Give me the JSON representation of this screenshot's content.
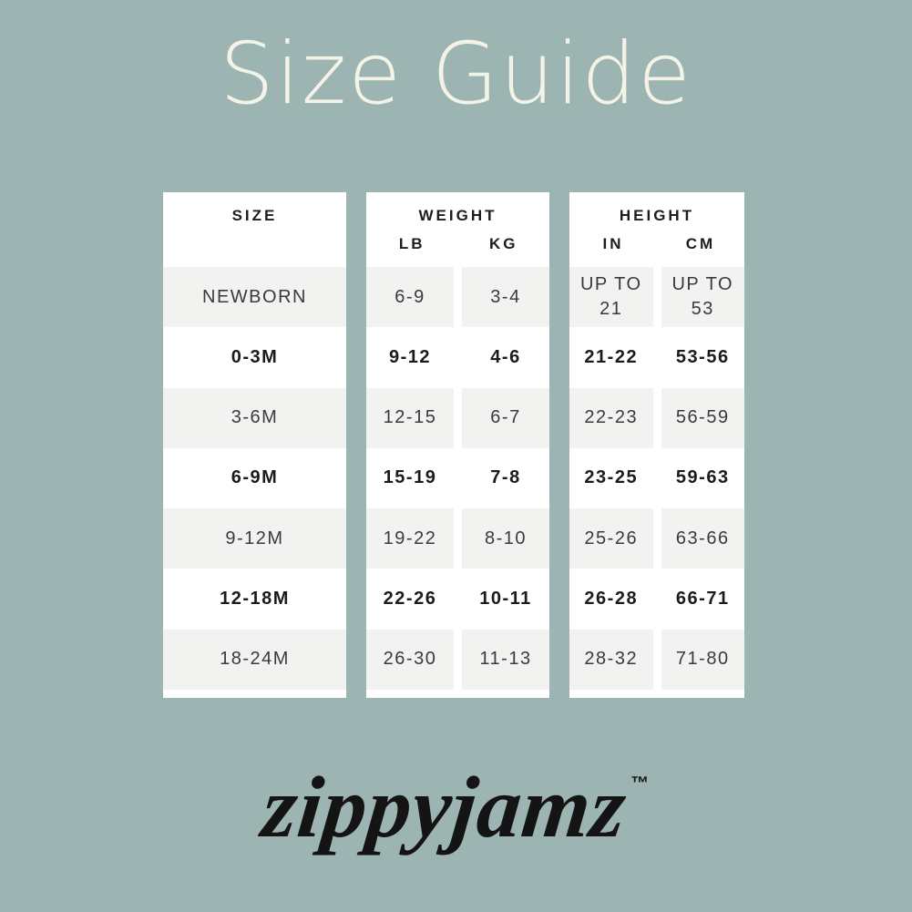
{
  "page": {
    "title": "Size Guide",
    "background_color": "#9cb4b2",
    "title_color": "#f4f3e7"
  },
  "headers": {
    "size": "SIZE",
    "weight": "WEIGHT",
    "weight_lb": "LB",
    "weight_kg": "KG",
    "height": "HEIGHT",
    "height_in": "IN",
    "height_cm": "CM"
  },
  "chart_data": {
    "type": "table",
    "title": "Size Guide",
    "columns": [
      "SIZE",
      "WEIGHT LB",
      "WEIGHT KG",
      "HEIGHT IN",
      "HEIGHT CM"
    ],
    "rows": [
      [
        "NEWBORN",
        "6-9",
        "3-4",
        "UP TO 21",
        "UP TO 53"
      ],
      [
        "0-3M",
        "9-12",
        "4-6",
        "21-22",
        "53-56"
      ],
      [
        "3-6M",
        "12-15",
        "6-7",
        "22-23",
        "56-59"
      ],
      [
        "6-9M",
        "15-19",
        "7-8",
        "23-25",
        "59-63"
      ],
      [
        "9-12M",
        "19-22",
        "8-10",
        "25-26",
        "63-66"
      ],
      [
        "12-18M",
        "22-26",
        "10-11",
        "26-28",
        "66-71"
      ],
      [
        "18-24M",
        "26-30",
        "11-13",
        "28-32",
        "71-80"
      ]
    ],
    "layout": {
      "panels": [
        "SIZE",
        "WEIGHT",
        "HEIGHT"
      ],
      "row_alt_color": "#f2f2f1",
      "panel_color": "#ffffff",
      "text_strong_color": "#1b1b1b",
      "text_muted_color": "#3a3a3a",
      "grid": "alternating-row-shading"
    }
  },
  "brand": {
    "logo_text": "zippyjamz",
    "trademark": "™",
    "logo_color": "#141414"
  }
}
